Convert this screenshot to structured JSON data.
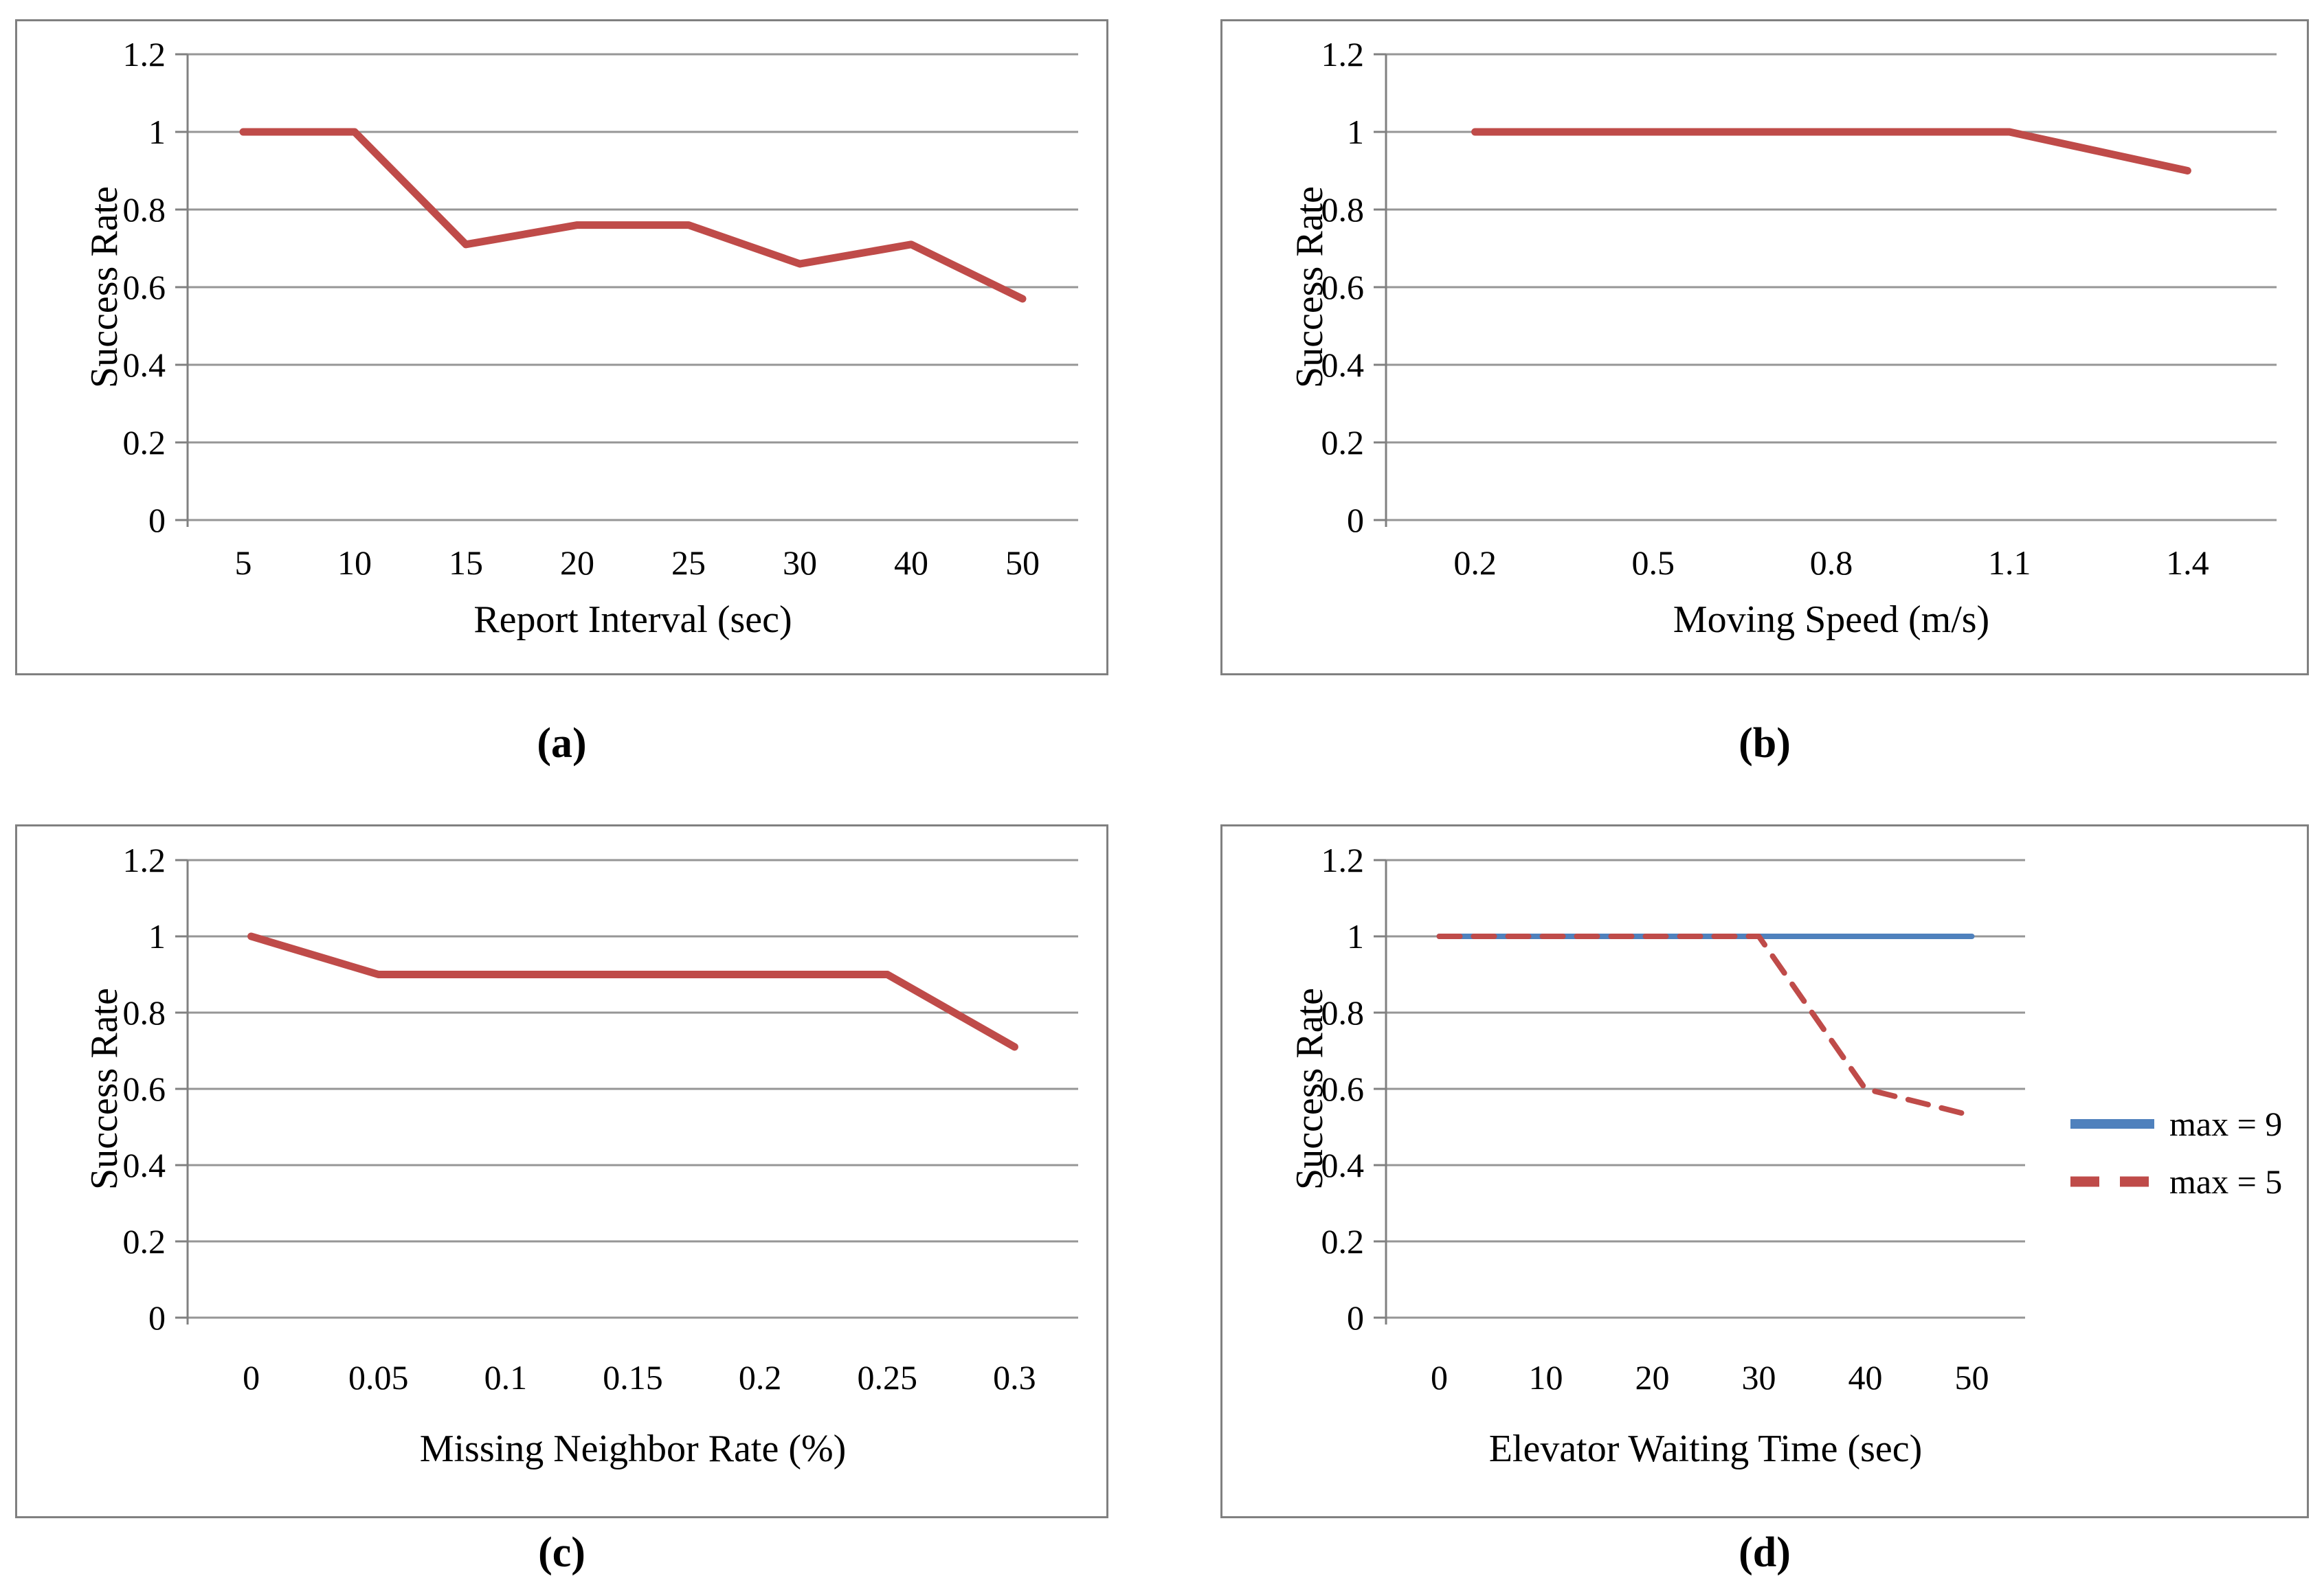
{
  "palette": {
    "series_red": "#BF4B49",
    "series_blue": "#4F81BD",
    "gridline": "#969696",
    "axis": "#808080",
    "panel_border": "#808080",
    "text": "#000000"
  },
  "chart_data": [
    {
      "id": "a",
      "type": "line",
      "caption": "(a)",
      "xlabel": "Report Interval (sec)",
      "ylabel": "Success Rate",
      "categories": [
        "5",
        "10",
        "15",
        "20",
        "25",
        "30",
        "40",
        "50"
      ],
      "series": [
        {
          "name": "",
          "color": "#BF4B49",
          "dash": false,
          "values": [
            1,
            1,
            0.71,
            0.76,
            0.76,
            0.66,
            0.71,
            0.57
          ]
        }
      ],
      "ylim": [
        0,
        1.2
      ],
      "yticks": [
        0,
        0.2,
        0.4,
        0.6,
        0.8,
        1,
        1.2
      ],
      "ytick_labels": [
        "0",
        "0.2",
        "0.4",
        "0.6",
        "0.8",
        "1",
        "1.2"
      ],
      "grid": true,
      "legend": null
    },
    {
      "id": "b",
      "type": "line",
      "caption": "(b)",
      "xlabel": "Moving Speed (m/s)",
      "ylabel": "Success Rate",
      "categories": [
        "0.2",
        "0.5",
        "0.8",
        "1.1",
        "1.4"
      ],
      "series": [
        {
          "name": "",
          "color": "#BF4B49",
          "dash": false,
          "values": [
            1,
            1,
            1,
            1,
            0.9
          ]
        }
      ],
      "ylim": [
        0,
        1.2
      ],
      "yticks": [
        0,
        0.2,
        0.4,
        0.6,
        0.8,
        1,
        1.2
      ],
      "ytick_labels": [
        "0",
        "0.2",
        "0.4",
        "0.6",
        "0.8",
        "1",
        "1.2"
      ],
      "grid": true,
      "legend": null
    },
    {
      "id": "c",
      "type": "line",
      "caption": "(c)",
      "xlabel": "Missing Neighbor Rate (%)",
      "ylabel": "Success Rate",
      "categories": [
        "0",
        "0.05",
        "0.1",
        "0.15",
        "0.2",
        "0.25",
        "0.3"
      ],
      "series": [
        {
          "name": "",
          "color": "#BF4B49",
          "dash": false,
          "values": [
            1,
            0.9,
            0.9,
            0.9,
            0.9,
            0.9,
            0.71
          ]
        }
      ],
      "ylim": [
        0,
        1.2
      ],
      "yticks": [
        0,
        0.2,
        0.4,
        0.6,
        0.8,
        1,
        1.2
      ],
      "ytick_labels": [
        "0",
        "0.2",
        "0.4",
        "0.6",
        "0.8",
        "1",
        "1.2"
      ],
      "grid": true,
      "legend": null
    },
    {
      "id": "d",
      "type": "line",
      "caption": "(d)",
      "xlabel": "Elevator Waiting Time (sec)",
      "ylabel": "Success Rate",
      "categories": [
        "0",
        "10",
        "20",
        "30",
        "40",
        "50"
      ],
      "series": [
        {
          "name": "max = 9",
          "color": "#4F81BD",
          "dash": false,
          "values": [
            1,
            1,
            1,
            1,
            1,
            1
          ]
        },
        {
          "name": "max = 5",
          "color": "#BF4B49",
          "dash": true,
          "values": [
            1,
            1,
            1,
            1,
            0.6,
            0.53
          ]
        }
      ],
      "ylim": [
        0,
        1.2
      ],
      "yticks": [
        0,
        0.2,
        0.4,
        0.6,
        0.8,
        1,
        1.2
      ],
      "ytick_labels": [
        "0",
        "0.2",
        "0.4",
        "0.6",
        "0.8",
        "1",
        "1.2"
      ],
      "grid": true,
      "legend": {
        "position": "right",
        "entries": [
          "max = 9",
          "max = 5"
        ]
      }
    }
  ]
}
